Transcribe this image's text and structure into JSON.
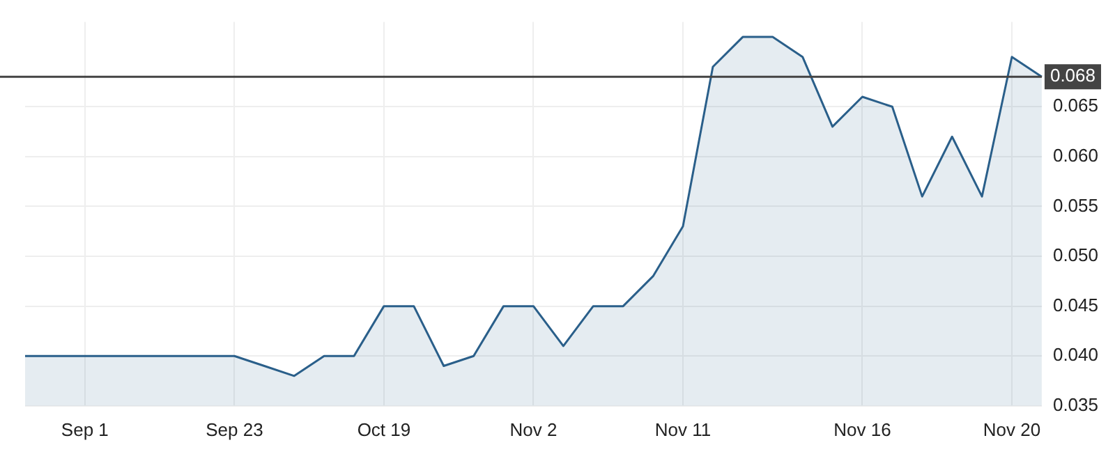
{
  "chart_data": {
    "type": "area",
    "categories": [
      null,
      null,
      "Sep 1",
      null,
      null,
      null,
      null,
      "Sep 23",
      null,
      null,
      null,
      null,
      "Oct 19",
      null,
      null,
      null,
      null,
      "Nov 2",
      null,
      null,
      null,
      null,
      "Nov 11",
      null,
      null,
      null,
      null,
      null,
      "Nov 16",
      null,
      null,
      null,
      null,
      "Nov 20",
      null
    ],
    "series": [
      {
        "color": "#2a5f8a",
        "values": [
          0.04,
          0.04,
          0.04,
          0.04,
          0.04,
          0.04,
          0.04,
          0.04,
          0.039,
          0.038,
          0.04,
          0.04,
          0.045,
          0.045,
          0.039,
          0.04,
          0.045,
          0.045,
          0.041,
          0.045,
          0.045,
          0.048,
          0.053,
          0.069,
          0.072,
          0.072,
          0.07,
          0.063,
          0.066,
          0.065,
          0.056,
          0.062,
          0.056,
          0.07,
          0.068
        ]
      }
    ],
    "ylim": [
      0.035,
      0.0735
    ],
    "yticks": [
      0.035,
      {
        "value": 0.04,
        "label": "0.040"
      },
      0.045,
      {
        "value": 0.05,
        "label": "0.050"
      },
      0.055,
      {
        "value": 0.06,
        "label": "0.060"
      },
      0.065
    ],
    "ref_lines": [
      {
        "axis": "y",
        "value": 0.068,
        "label": "0.068",
        "color": "#444444"
      }
    ],
    "grid": true,
    "legend": false,
    "marker": "none"
  }
}
